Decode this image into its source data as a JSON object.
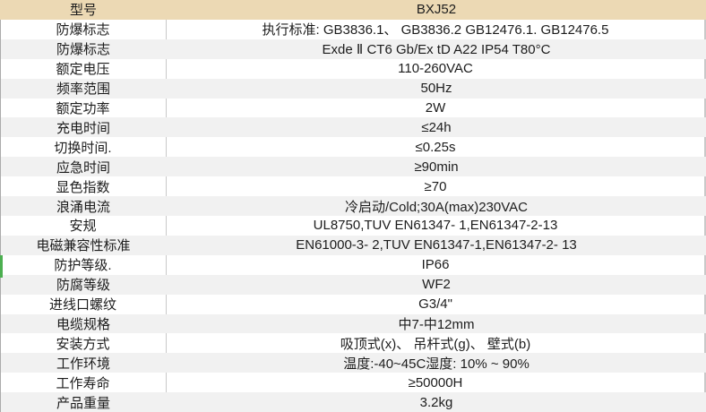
{
  "table": {
    "header": {
      "label": "型号",
      "value": "BXJ52"
    },
    "rows": [
      {
        "label": "防爆标志",
        "value": "执行标准: GB3836.1、 GB3836.2 GB12476.1. GB12476.5"
      },
      {
        "label": "防爆标志",
        "value": "Exde Ⅱ CT6 Gb/Ex tD A22 IP54 T80°C"
      },
      {
        "label": "额定电压",
        "value": "110-260VAC"
      },
      {
        "label": "频率范围",
        "value": "50Hz"
      },
      {
        "label": "额定功率",
        "value": "2W"
      },
      {
        "label": "充电时间",
        "value": "≤24h"
      },
      {
        "label": "切换时间.",
        "value": "≤0.25s"
      },
      {
        "label": "应急时间",
        "value": "≥90min"
      },
      {
        "label": "显色指数",
        "value": "≥70"
      },
      {
        "label": "浪涌电流",
        "value": "冷启动/Cold;30A(max)230VAC"
      },
      {
        "label": "安规",
        "value": "UL8750,TUV EN61347- 1,EN61347-2-13"
      },
      {
        "label": "电磁兼容性标准",
        "value": "EN61000-3- 2,TUV EN61347-1,EN61347-2- 13"
      },
      {
        "label": "防护等级.",
        "value": "IP66"
      },
      {
        "label": "防腐等级",
        "value": "WF2"
      },
      {
        "label": "进线口螺纹",
        "value": "G3/4\""
      },
      {
        "label": "电缆规格",
        "value": "中7-中12mm"
      },
      {
        "label": "安装方式",
        "value": "吸顶式(x)、 吊杆式(g)、 壁式(b)"
      },
      {
        "label": "工作环境",
        "value": "温度:-40~45C湿度: 10% ~ 90%"
      },
      {
        "label": "工作寿命",
        "value": "≥50000H"
      },
      {
        "label": "产品重量",
        "value": "3.2kg"
      }
    ],
    "colors": {
      "header_bg": "#ecd9b4",
      "stripe_bg": "#f1f1f1",
      "accent_green": "#4caf50",
      "divider": "#c9c9c9",
      "edge_line": "#ababab",
      "text": "#1c1c1c"
    }
  }
}
